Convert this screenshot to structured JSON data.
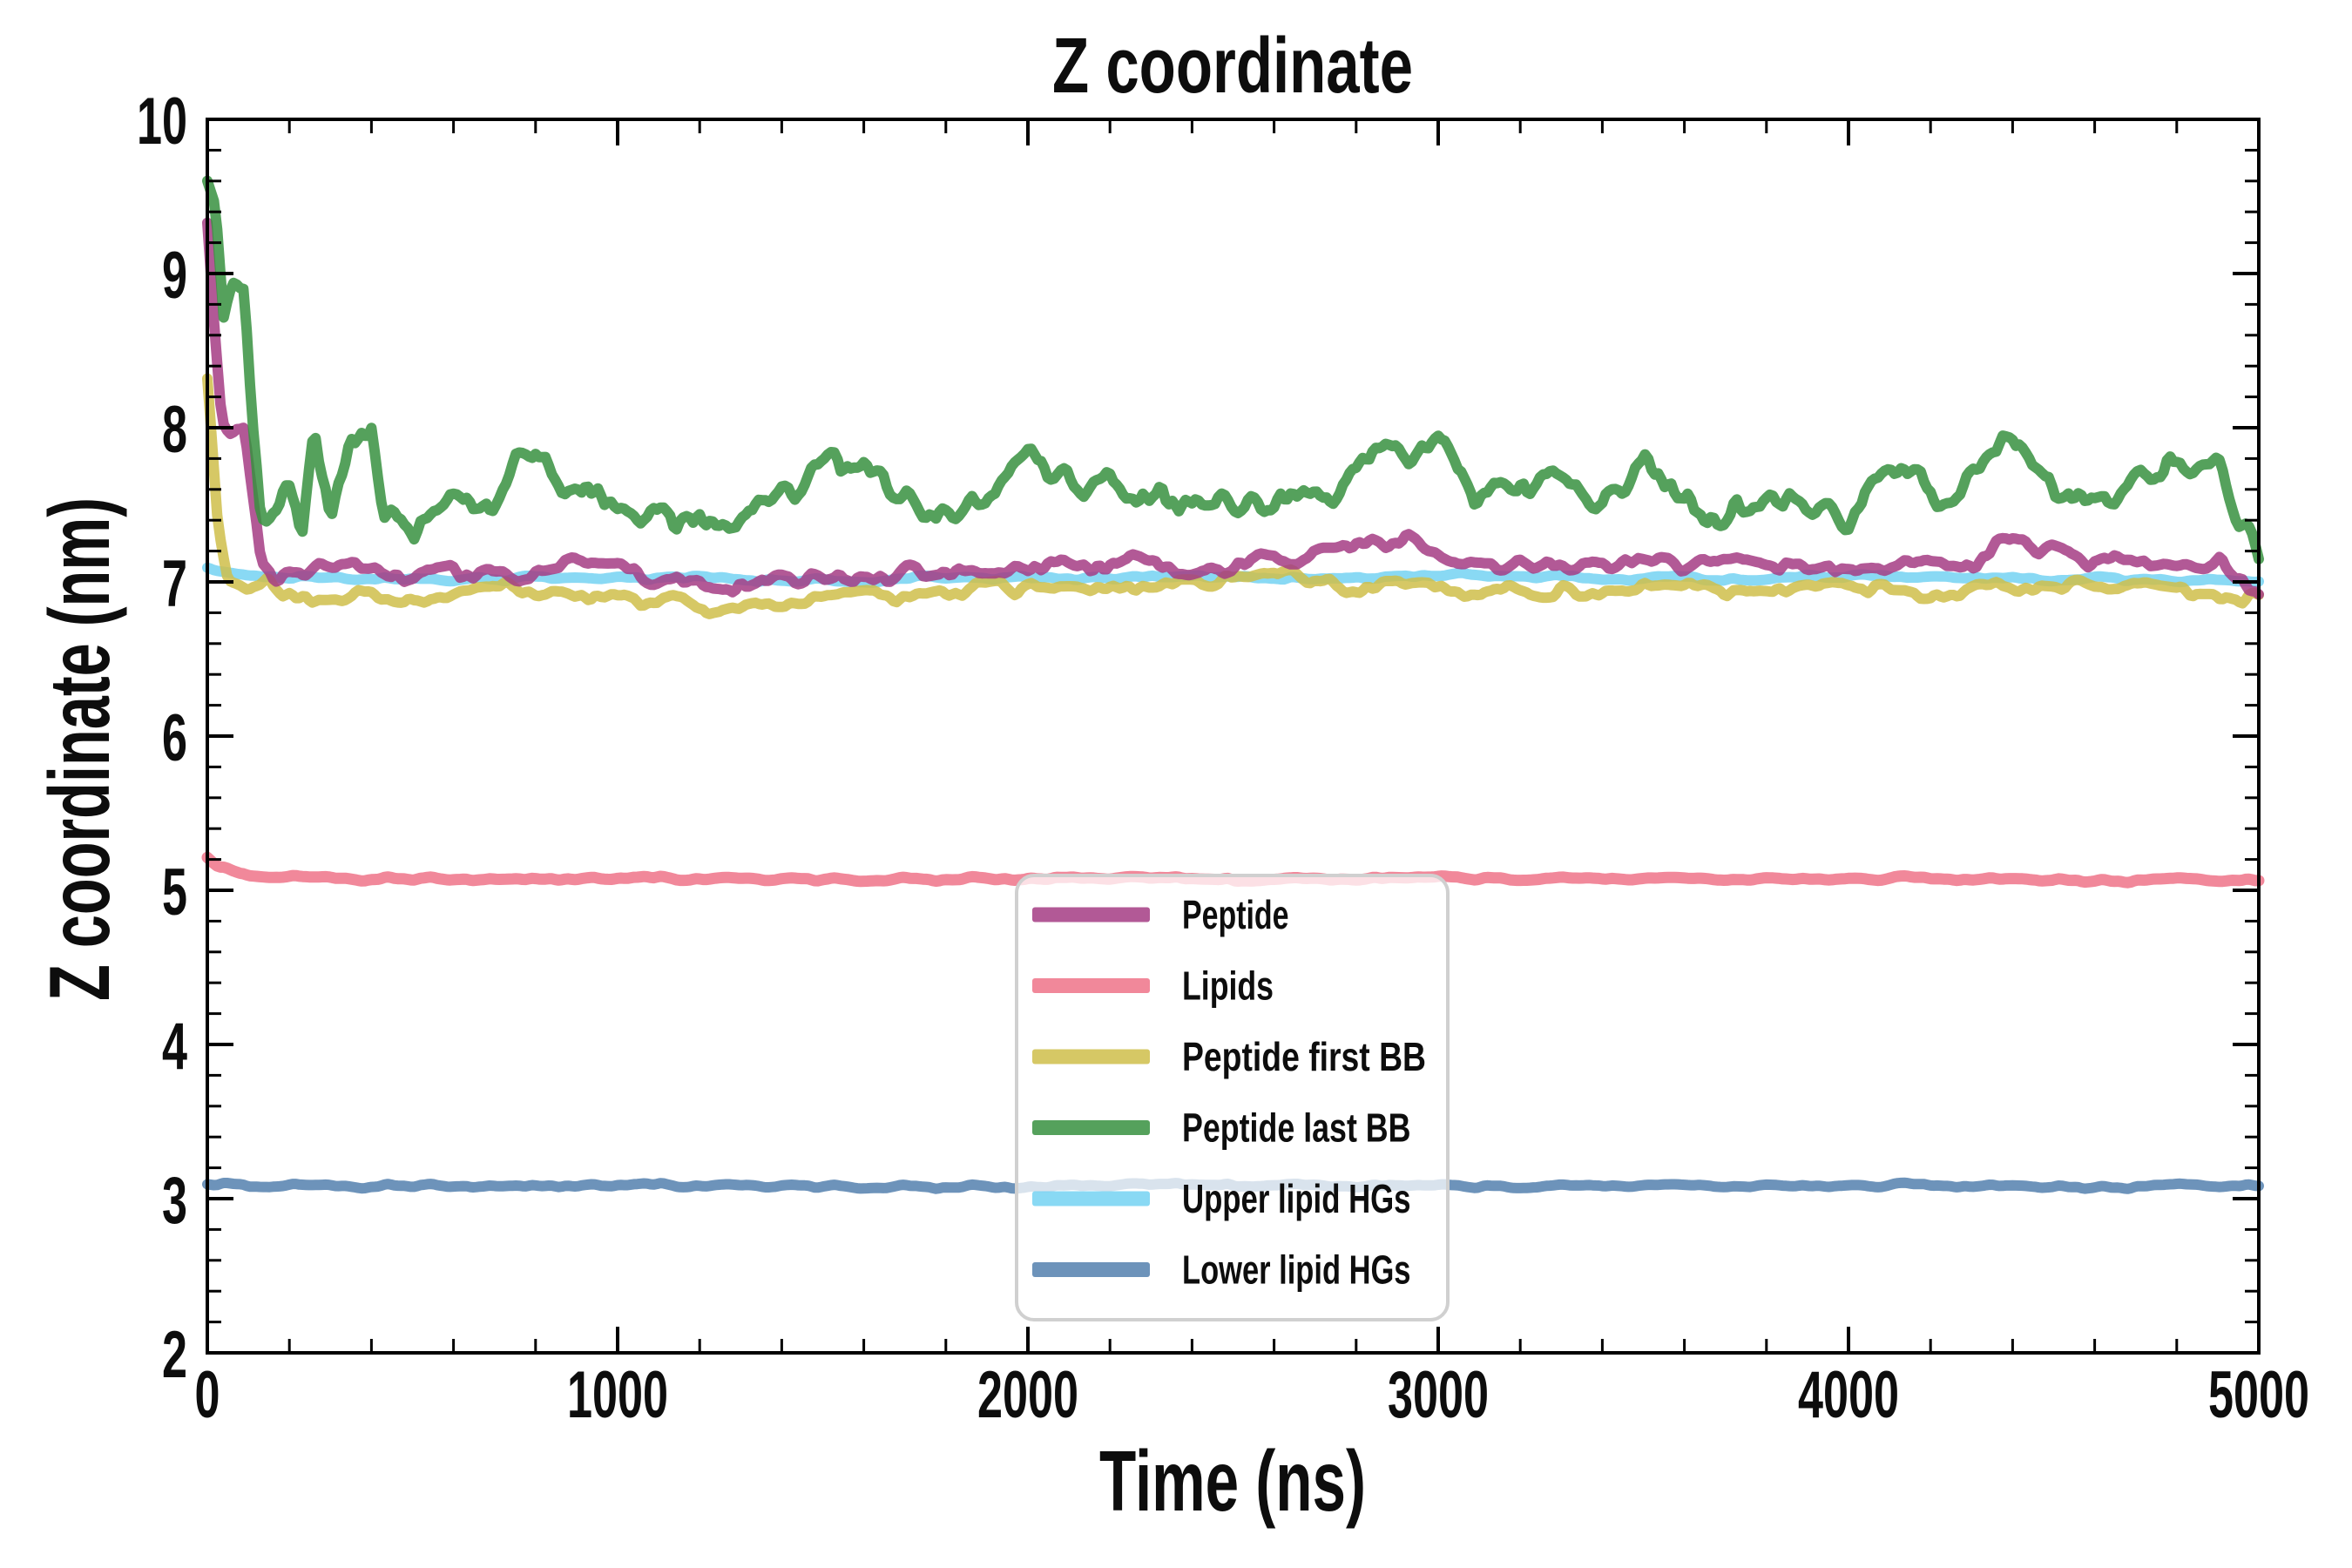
{
  "figure": {
    "title": "Z coordinate",
    "background": "#ffffff",
    "text_color": "#0d0d0d"
  },
  "axes": {
    "xlabel": "Time (ns)",
    "ylabel": "Z coordinate (nm)",
    "xlim": [
      0,
      5000
    ],
    "ylim": [
      2,
      10
    ],
    "x_major_ticks": [
      0,
      1000,
      2000,
      3000,
      4000,
      5000
    ],
    "x_minor_step": 200,
    "y_major_ticks": [
      2,
      3,
      4,
      5,
      6,
      7,
      8,
      9,
      10
    ],
    "y_minor_step": 0.2,
    "spine_color": "#000000",
    "grid": false
  },
  "legend": {
    "position": "center",
    "frame_color": "#d0d0d0",
    "fill": "rgba(255,255,255,0.74)",
    "items": [
      "Peptide",
      "Lipids",
      "Peptide first BB",
      "Peptide last BB",
      "Upper lipid HGs",
      "Lower lipid HGs"
    ]
  },
  "chart_data": {
    "type": "line",
    "title": "Z coordinate",
    "xlabel": "Time (ns)",
    "ylabel": "Z coordinate (nm)",
    "xlim": [
      0,
      5000
    ],
    "ylim": [
      2,
      10
    ],
    "x_unit": "ns",
    "legend_position": "center",
    "grid": false,
    "line_opacity": 0.85,
    "draw_order": [
      "Lipids",
      "Lower lipid HGs",
      "Upper lipid HGs",
      "Peptide first BB",
      "Peptide",
      "Peptide last BB"
    ],
    "series": [
      {
        "name": "Peptide",
        "color": "#a43c84",
        "line_width": 12,
        "noise_amp": 0.07,
        "noise_scale_ns": 45,
        "seed": 3,
        "x": [
          0,
          15,
          35,
          60,
          90,
          110,
          130,
          160,
          200,
          250,
          350,
          500,
          625,
          750,
          875,
          1000,
          1125,
          1250,
          1375,
          1500,
          1625,
          1750,
          1875,
          2000,
          2125,
          2250,
          2375,
          2500,
          2625,
          2750,
          2875,
          2950,
          3050,
          3250,
          3500,
          3750,
          4000,
          4150,
          4300,
          4400,
          4500,
          4650,
          4800,
          4900,
          5000
        ],
        "y": [
          9.3,
          8.75,
          8.05,
          7.95,
          7.98,
          7.55,
          7.15,
          7.05,
          7.1,
          7.08,
          7.12,
          7.02,
          7.08,
          7.04,
          7.1,
          7.08,
          6.98,
          6.96,
          7.02,
          7.0,
          7.06,
          7.04,
          7.1,
          7.06,
          7.12,
          7.14,
          7.06,
          7.08,
          7.16,
          7.18,
          7.24,
          7.28,
          7.14,
          7.12,
          7.1,
          7.16,
          7.06,
          7.12,
          7.08,
          7.3,
          7.18,
          7.12,
          7.08,
          7.14,
          6.94
        ]
      },
      {
        "name": "Lipids",
        "color": "#ee7388",
        "line_width": 13,
        "noise_amp": 0.018,
        "noise_scale_ns": 55,
        "seed": 7,
        "x": [
          0,
          30,
          80,
          200,
          500,
          1000,
          1500,
          2000,
          2500,
          3000,
          3500,
          4000,
          4500,
          5000
        ],
        "y": [
          5.22,
          5.15,
          5.1,
          5.08,
          5.07,
          5.08,
          5.07,
          5.08,
          5.07,
          5.08,
          5.07,
          5.08,
          5.07,
          5.06
        ]
      },
      {
        "name": "Peptide first BB",
        "color": "#cfbe4a",
        "line_width": 12,
        "noise_amp": 0.06,
        "noise_scale_ns": 48,
        "seed": 5,
        "x": [
          0,
          25,
          50,
          100,
          150,
          200,
          250,
          500,
          750,
          1000,
          1250,
          1500,
          1750,
          2000,
          2250,
          2500,
          2600,
          2750,
          3000,
          3250,
          3500,
          3750,
          4000,
          4250,
          4500,
          4750,
          5000
        ],
        "y": [
          8.3,
          7.4,
          7.05,
          6.95,
          7.0,
          6.95,
          6.92,
          6.9,
          6.96,
          6.92,
          6.82,
          6.88,
          6.94,
          6.96,
          6.92,
          7.0,
          7.1,
          6.96,
          6.95,
          6.92,
          6.96,
          6.94,
          6.96,
          6.92,
          7.0,
          6.96,
          6.88
        ]
      },
      {
        "name": "Peptide last BB",
        "color": "#37913f",
        "line_width": 12,
        "noise_amp": 0.12,
        "noise_scale_ns": 38,
        "seed": 11,
        "x": [
          0,
          20,
          40,
          60,
          90,
          110,
          130,
          160,
          200,
          230,
          260,
          300,
          350,
          400,
          430,
          500,
          600,
          700,
          800,
          850,
          900,
          1000,
          1100,
          1250,
          1400,
          1550,
          1700,
          1850,
          2000,
          2100,
          2250,
          2400,
          2500,
          2600,
          2750,
          2900,
          3000,
          3100,
          3250,
          3400,
          3500,
          3600,
          3700,
          3850,
          4000,
          4100,
          4250,
          4400,
          4500,
          4650,
          4800,
          4900,
          4950,
          5000
        ],
        "y": [
          9.65,
          9.45,
          8.7,
          8.95,
          8.9,
          7.95,
          7.4,
          7.45,
          7.65,
          7.4,
          8.0,
          7.35,
          7.9,
          8.05,
          7.45,
          7.35,
          7.5,
          7.55,
          7.9,
          7.6,
          7.7,
          7.45,
          7.4,
          7.3,
          7.55,
          7.8,
          7.5,
          7.45,
          7.75,
          7.65,
          7.6,
          7.45,
          7.55,
          7.5,
          7.6,
          7.85,
          7.95,
          7.55,
          7.65,
          7.5,
          7.85,
          7.55,
          7.45,
          7.6,
          7.35,
          7.75,
          7.5,
          8.0,
          7.6,
          7.55,
          7.75,
          7.8,
          7.4,
          7.1
        ]
      },
      {
        "name": "Upper lipid HGs",
        "color": "#74d2f2",
        "line_width": 12,
        "noise_amp": 0.022,
        "noise_scale_ns": 60,
        "seed": 9,
        "x": [
          0,
          100,
          500,
          1000,
          1500,
          2000,
          2500,
          3000,
          3500,
          4000,
          4500,
          5000
        ],
        "y": [
          7.1,
          7.04,
          7.02,
          7.03,
          7.01,
          7.03,
          7.02,
          7.04,
          7.02,
          7.03,
          7.02,
          7.01
        ]
      },
      {
        "name": "Lower lipid HGs",
        "color": "#5480ae",
        "line_width": 12,
        "noise_amp": 0.018,
        "noise_scale_ns": 55,
        "seed": 7,
        "x": [
          0,
          100,
          500,
          1000,
          1500,
          2000,
          2500,
          3000,
          3500,
          4000,
          4500,
          5000
        ],
        "y": [
          3.1,
          3.08,
          3.08,
          3.09,
          3.08,
          3.08,
          3.09,
          3.08,
          3.08,
          3.09,
          3.08,
          3.08
        ]
      }
    ]
  }
}
